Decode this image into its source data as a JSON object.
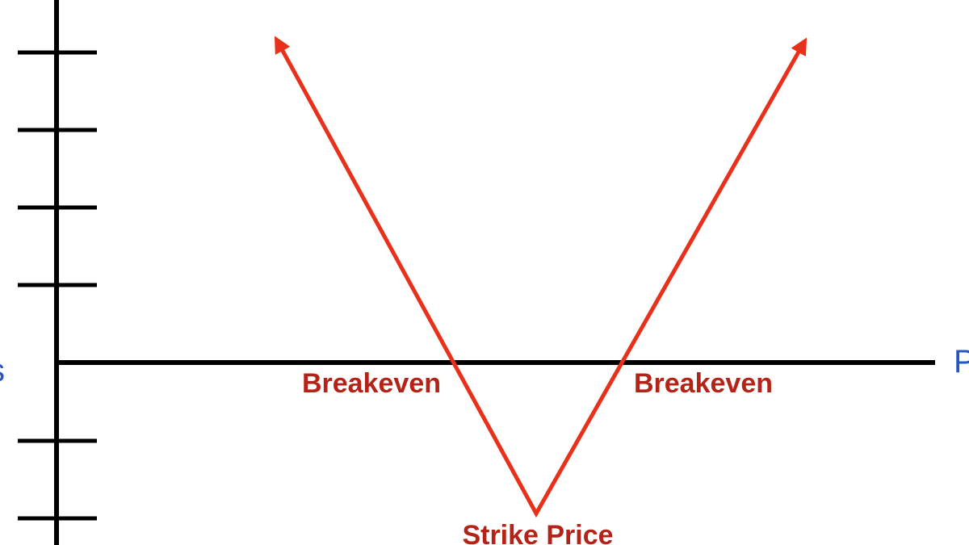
{
  "diagram": {
    "type": "long-straddle-payoff",
    "colors": {
      "axis": "#000000",
      "payoff_line": "#e8301a",
      "annotation_text": "#b42318",
      "axis_label_text": "#2456c4"
    },
    "annotations": {
      "breakeven_left": "Breakeven",
      "breakeven_right": "Breakeven",
      "strike": "Strike Price"
    },
    "axis_labels": {
      "x_partial": "P",
      "y_partial": "s"
    }
  }
}
